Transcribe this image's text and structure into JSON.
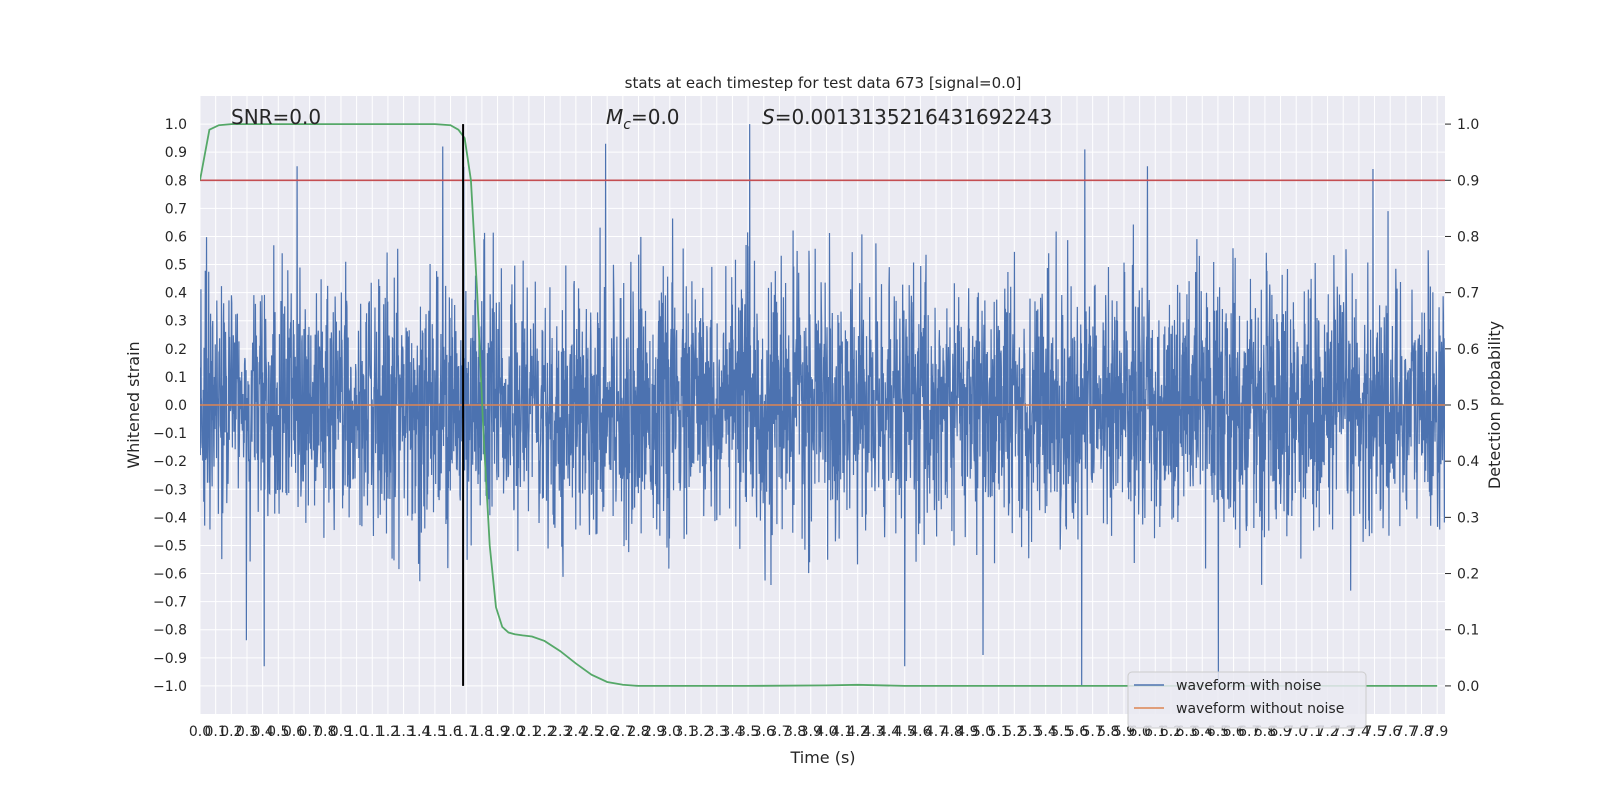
{
  "chart_data": {
    "type": "line",
    "title": "stats at each timestep for test data 673 [signal=0.0]",
    "xlabel": "Time (s)",
    "ylabel_left": "Whitened strain",
    "ylabel_right": "Detection probability",
    "xlim": [
      0.0,
      7.95
    ],
    "ylim_left": [
      -1.1,
      1.1
    ],
    "ylim_right": [
      -0.05,
      1.05
    ],
    "grid": true,
    "legend_placement": "bottom-right",
    "annotations": {
      "snr": "SNR=0.0",
      "mc_symbol": "M",
      "mc_subscript": "c",
      "mc_value": "=0.0",
      "s_symbol": "S",
      "s_value": "=0.0013135216431692243"
    },
    "x_tick_labels": [
      "0.0",
      "0.1",
      "0.2",
      "0.3",
      "0.4",
      "0.5",
      "0.6",
      "0.7",
      "0.8",
      "0.9",
      "1.0",
      "1.1",
      "1.2",
      "1.3",
      "1.4",
      "1.5",
      "1.6",
      "1.7",
      "1.8",
      "1.9",
      "2.0",
      "2.1",
      "2.2",
      "2.3",
      "2.4",
      "2.5",
      "2.6",
      "2.7",
      "2.8",
      "2.9",
      "3.0",
      "3.1",
      "3.2",
      "3.3",
      "3.4",
      "3.5",
      "3.6",
      "3.7",
      "3.8",
      "3.9",
      "4.0",
      "4.1",
      "4.2",
      "4.3",
      "4.4",
      "4.5",
      "4.6",
      "4.7",
      "4.8",
      "4.9",
      "5.0",
      "5.1",
      "5.2",
      "5.3",
      "5.4",
      "5.5",
      "5.6",
      "5.7",
      "5.8",
      "5.9",
      "6.0",
      "6.1",
      "6.2",
      "6.3",
      "6.4",
      "6.5",
      "6.6",
      "6.7",
      "6.8",
      "6.9",
      "7.0",
      "7.1",
      "7.2",
      "7.3",
      "7.4",
      "7.5",
      "7.6",
      "7.7",
      "7.8",
      "7.9"
    ],
    "y_left_tick_labels": [
      "1.0",
      "0.9",
      "0.8",
      "0.7",
      "0.6",
      "0.5",
      "0.4",
      "0.3",
      "0.2",
      "0.1",
      "0.0",
      "−0.1",
      "−0.2",
      "−0.3",
      "−0.4",
      "−0.5",
      "−0.6",
      "−0.7",
      "−0.8",
      "−0.9",
      "−1.0"
    ],
    "y_right_tick_labels": [
      "1.0",
      "0.9",
      "0.8",
      "0.7",
      "0.6",
      "0.5",
      "0.4",
      "0.3",
      "0.2",
      "0.1",
      "0.0"
    ],
    "threshold": {
      "value": 0.9,
      "color": "#c44e52"
    },
    "marker_time": 1.68,
    "series": [
      {
        "name": "waveform with noise",
        "color": "#4c72b0",
        "axis": "left",
        "amplitude_range": [
          -1.0,
          1.0
        ],
        "notable_peaks": [
          [
            0.62,
            0.85
          ],
          [
            1.55,
            0.92
          ],
          [
            2.59,
            0.93
          ],
          [
            3.51,
            1.0
          ],
          [
            5.65,
            0.91
          ],
          [
            6.05,
            0.85
          ],
          [
            7.49,
            0.84
          ]
        ],
        "notable_troughs": [
          [
            0.41,
            -0.93
          ],
          [
            4.5,
            -0.93
          ],
          [
            5.0,
            -0.89
          ],
          [
            5.63,
            -1.0
          ]
        ]
      },
      {
        "name": "waveform without noise",
        "color": "#dd8452",
        "axis": "left",
        "x": [
          0.0,
          7.95
        ],
        "y": [
          0.0,
          0.0
        ]
      },
      {
        "color": "#55a868",
        "axis": "right",
        "x": [
          0.0,
          0.06,
          0.12,
          0.2,
          0.5,
          1.0,
          1.5,
          1.6,
          1.65,
          1.69,
          1.73,
          1.77,
          1.81,
          1.85,
          1.89,
          1.93,
          1.97,
          2.01,
          2.06,
          2.12,
          2.2,
          2.3,
          2.4,
          2.5,
          2.6,
          2.7,
          2.8,
          3.0,
          3.5,
          4.0,
          4.2,
          4.5,
          5.0,
          6.0,
          7.0,
          7.9
        ],
        "y": [
          0.9,
          0.99,
          0.998,
          1.0,
          1.0,
          1.0,
          1.0,
          0.998,
          0.99,
          0.975,
          0.9,
          0.7,
          0.45,
          0.25,
          0.14,
          0.105,
          0.095,
          0.092,
          0.09,
          0.088,
          0.08,
          0.062,
          0.04,
          0.02,
          0.007,
          0.002,
          0.0,
          0.0,
          0.0,
          0.001,
          0.002,
          0.0,
          0.0,
          0.0,
          0.0,
          0.0
        ]
      }
    ]
  }
}
